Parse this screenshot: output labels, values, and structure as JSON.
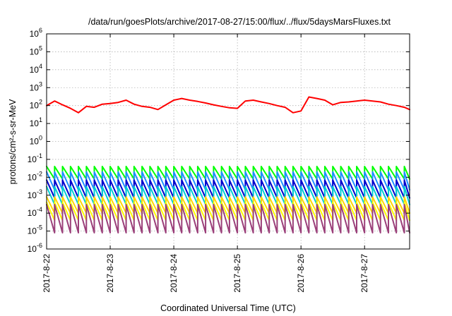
{
  "chart_data": {
    "type": "line",
    "title": "/data/run/goesPlots/archive/2017-08-27/15:00/flux/../flux/5daysMarsFluxes.txt",
    "xlabel": "Coordinated Universal Time (UTC)",
    "ylabel": "protons/cm²-s-sr-MeV",
    "y_scale": "log",
    "ylim": [
      1e-06,
      1000000.0
    ],
    "xlim": [
      "2017-08-22 00:00",
      "2017-08-27 17:00"
    ],
    "grid": true,
    "x_ticks": [
      "2017-8-22",
      "2017-8-23",
      "2017-8-24",
      "2017-8-25",
      "2017-8-26",
      "2017-8-27"
    ],
    "y_ticks": [
      {
        "base": "10",
        "exp": "6",
        "value": 1000000.0
      },
      {
        "base": "10",
        "exp": "5",
        "value": 100000.0
      },
      {
        "base": "10",
        "exp": "4",
        "value": 10000.0
      },
      {
        "base": "10",
        "exp": "3",
        "value": 1000.0
      },
      {
        "base": "10",
        "exp": "2",
        "value": 100.0
      },
      {
        "base": "10",
        "exp": "1",
        "value": 10.0
      },
      {
        "base": "10",
        "exp": "0",
        "value": 1.0
      },
      {
        "base": "10",
        "exp": "-1",
        "value": 0.1
      },
      {
        "base": "10",
        "exp": "-2",
        "value": 0.01
      },
      {
        "base": "10",
        "exp": "-3",
        "value": 0.001
      },
      {
        "base": "10",
        "exp": "-4",
        "value": 0.0001
      },
      {
        "base": "10",
        "exp": "-5",
        "value": 1e-05
      },
      {
        "base": "10",
        "exp": "-6",
        "value": 1e-06
      }
    ],
    "series": [
      {
        "color": "#ff0000",
        "x": [
          "2017-08-22 00:00",
          "2017-08-22 03:00",
          "2017-08-22 06:00",
          "2017-08-22 09:00",
          "2017-08-22 12:00",
          "2017-08-22 15:00",
          "2017-08-22 18:00",
          "2017-08-22 21:00",
          "2017-08-23 00:00",
          "2017-08-23 03:00",
          "2017-08-23 06:00",
          "2017-08-23 09:00",
          "2017-08-23 12:00",
          "2017-08-23 15:00",
          "2017-08-23 18:00",
          "2017-08-23 21:00",
          "2017-08-24 00:00",
          "2017-08-24 03:00",
          "2017-08-24 06:00",
          "2017-08-24 09:00",
          "2017-08-24 12:00",
          "2017-08-24 15:00",
          "2017-08-24 18:00",
          "2017-08-24 21:00",
          "2017-08-25 00:00",
          "2017-08-25 03:00",
          "2017-08-25 06:00",
          "2017-08-25 09:00",
          "2017-08-25 12:00",
          "2017-08-25 15:00",
          "2017-08-25 18:00",
          "2017-08-25 21:00",
          "2017-08-26 00:00",
          "2017-08-26 03:00",
          "2017-08-26 06:00",
          "2017-08-26 09:00",
          "2017-08-26 12:00",
          "2017-08-26 15:00",
          "2017-08-26 18:00",
          "2017-08-26 21:00",
          "2017-08-27 00:00",
          "2017-08-27 03:00",
          "2017-08-27 06:00",
          "2017-08-27 09:00",
          "2017-08-27 12:00",
          "2017-08-27 15:00",
          "2017-08-27 17:00"
        ],
        "y": [
          100,
          180,
          110,
          70,
          40,
          90,
          80,
          120,
          130,
          150,
          200,
          120,
          90,
          80,
          60,
          110,
          200,
          250,
          200,
          170,
          140,
          110,
          90,
          75,
          70,
          180,
          200,
          160,
          130,
          100,
          80,
          40,
          50,
          300,
          250,
          200,
          110,
          150,
          160,
          180,
          200,
          180,
          160,
          120,
          100,
          80,
          60
        ]
      },
      {
        "color": "#00ff00",
        "y_min": 0.008,
        "y_max": 0.04
      },
      {
        "color": "#1e90ff",
        "y_min": 0.002,
        "y_max": 0.02
      },
      {
        "color": "#0000cd",
        "y_min": 0.0007,
        "y_max": 0.007
      },
      {
        "color": "#00ced1",
        "y_min": 0.0003,
        "y_max": 0.003
      },
      {
        "color": "#ffd700",
        "y_min": 0.0001,
        "y_max": 0.0008
      },
      {
        "color": "#ffff00",
        "y_min": 4e-05,
        "y_max": 0.0004
      },
      {
        "color": "#9b3f7a",
        "y_min": 8e-06,
        "y_max": 0.0003
      }
    ]
  }
}
